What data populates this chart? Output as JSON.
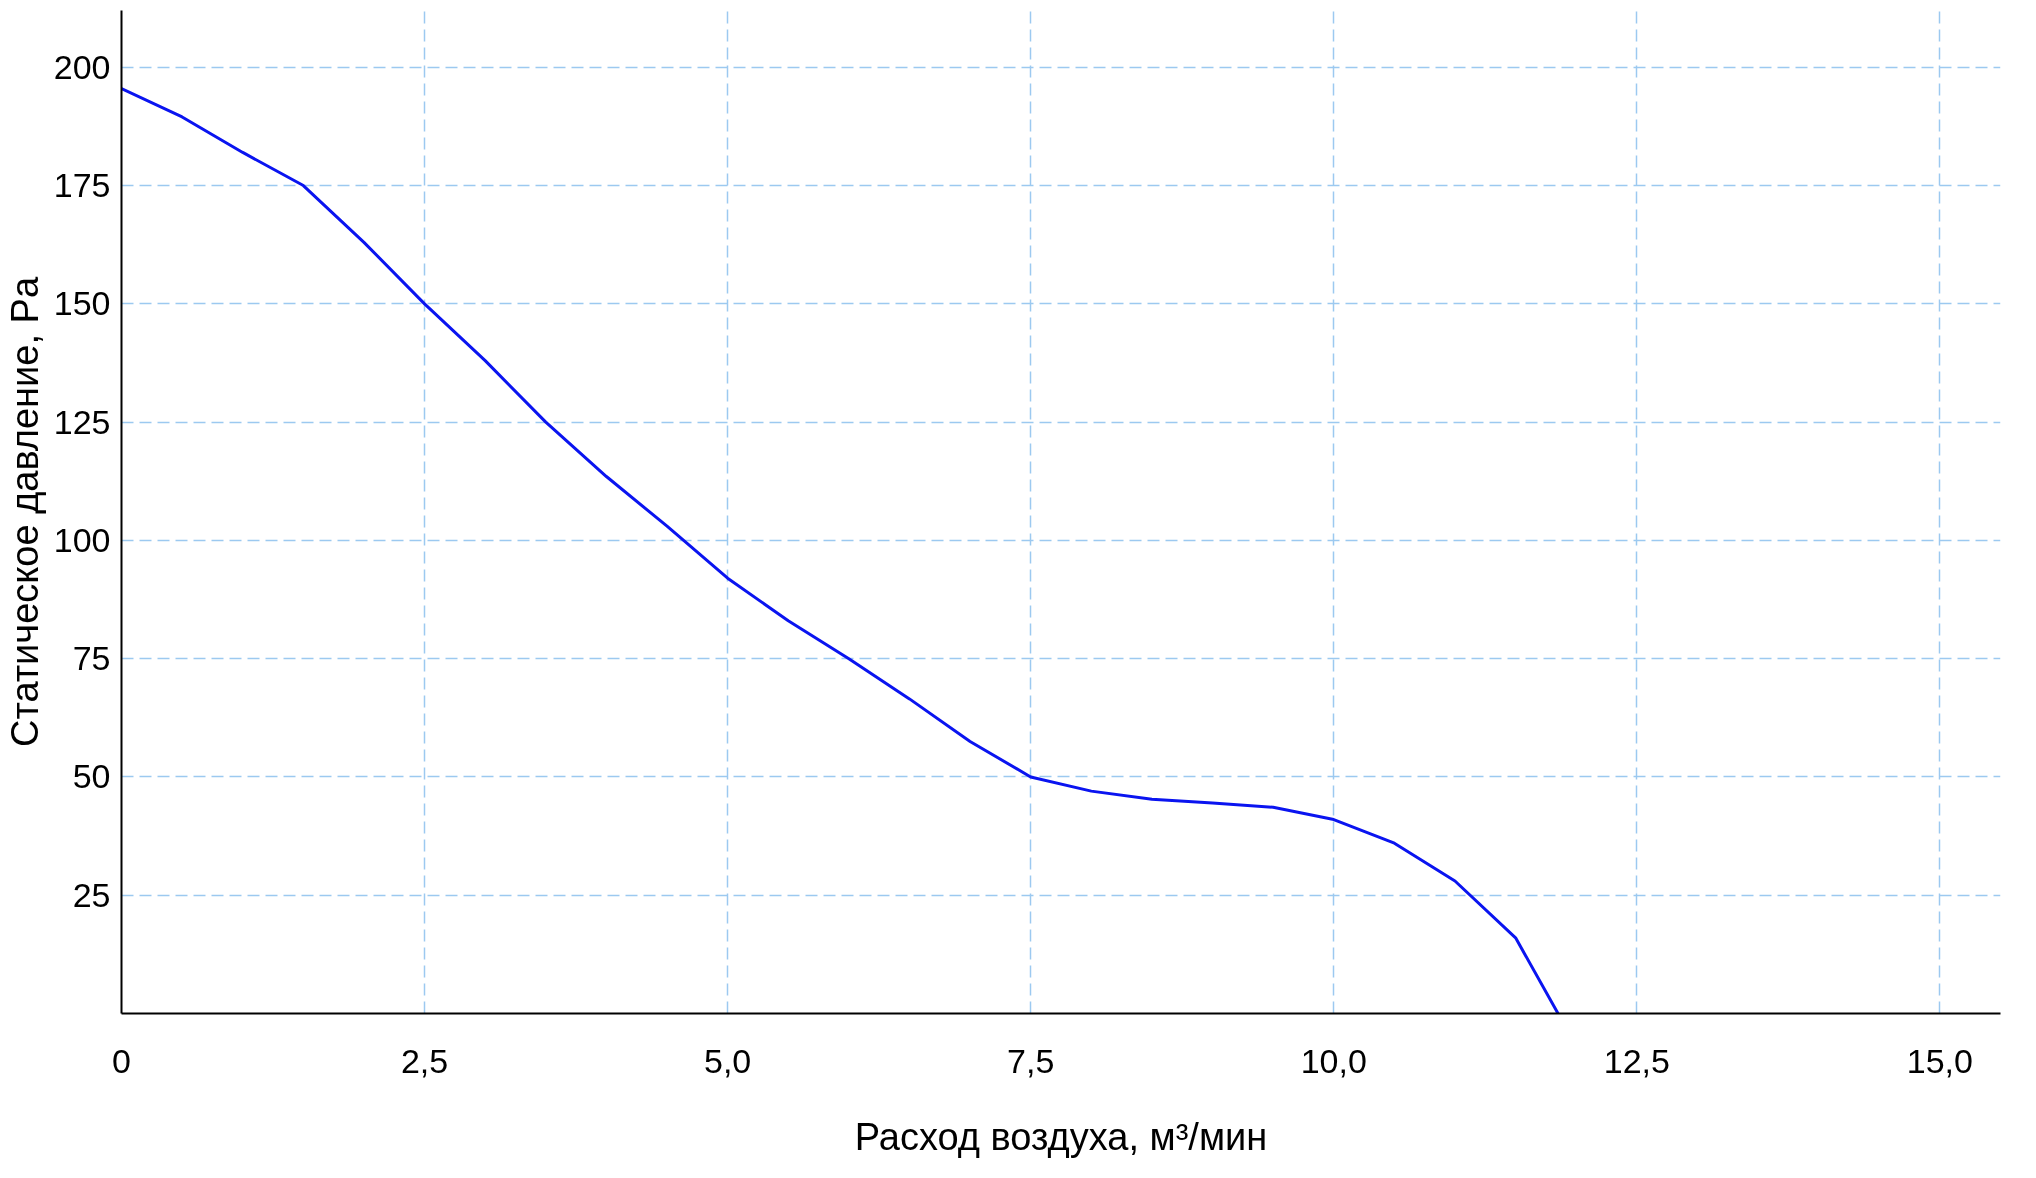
{
  "chart_data": {
    "type": "line",
    "xlabel": "Расход воздуха, м³/мин",
    "ylabel": "Статическое давление, Pa",
    "x": [
      0,
      0.5,
      1,
      1.5,
      2,
      2.5,
      3,
      3.5,
      4,
      4.5,
      5,
      5.5,
      6,
      6.5,
      7,
      7.5,
      8,
      8.5,
      9,
      9.5,
      10,
      10.5,
      11,
      11.5,
      11.85
    ],
    "series": [
      {
        "color": "#0a14f0",
        "values": [
          195.5,
          189.5,
          182,
          175,
          163,
          150,
          138,
          125,
          113.5,
          103,
          92,
          83,
          75,
          66.5,
          57.5,
          50,
          47,
          45.3,
          44.5,
          43.6,
          41,
          36,
          28,
          16,
          0
        ]
      }
    ],
    "xlim": [
      0,
      15.5
    ],
    "ylim": [
      0,
      212
    ],
    "xticks": [
      0,
      {
        "value": 2.5,
        "label": "2,5"
      },
      {
        "value": 5,
        "label": "5,0"
      },
      {
        "value": 7.5,
        "label": "7,5"
      },
      {
        "value": 10,
        "label": "10,0"
      },
      {
        "value": 12.5,
        "label": "12,5"
      },
      {
        "value": 15,
        "label": "15,0"
      }
    ],
    "yticks": [
      25,
      50,
      75,
      100,
      125,
      150,
      175,
      200
    ],
    "grid": true,
    "line_style": "solid",
    "marker": "none"
  }
}
